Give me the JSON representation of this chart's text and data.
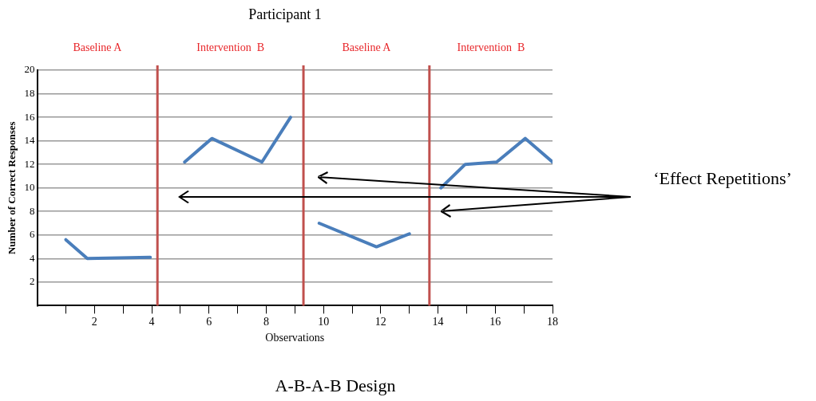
{
  "chart_data": {
    "type": "line",
    "title": "Participant 1",
    "xlabel": "Observations",
    "ylabel": "Number of Correct Responses",
    "xlim": [
      0,
      18
    ],
    "ylim": [
      0,
      20
    ],
    "xticks": [
      {
        "value": 1,
        "label": null
      },
      2,
      {
        "value": 3,
        "label": null
      },
      4,
      {
        "value": 5,
        "label": null
      },
      6,
      {
        "value": 7,
        "label": null
      },
      8,
      {
        "value": 9,
        "label": null
      },
      10,
      {
        "value": 11,
        "label": null
      },
      12,
      {
        "value": 13,
        "label": null
      },
      14,
      {
        "value": 15,
        "label": null
      },
      16,
      {
        "value": 17,
        "label": null
      },
      18
    ],
    "yticks": [
      2,
      4,
      6,
      8,
      10,
      12,
      14,
      16,
      18,
      20
    ],
    "grid": "y",
    "marker": "none",
    "line_style": "solid",
    "series": [
      {
        "color": "#4a7ebb",
        "x": [
          1,
          1.75,
          3.95
        ],
        "values": [
          5.6,
          4,
          4.1
        ]
      },
      {
        "color": "#4a7ebb",
        "x": [
          5.15,
          6.1,
          7.85,
          8.85
        ],
        "values": [
          12.2,
          14.2,
          12.2,
          16
        ]
      },
      {
        "color": "#4a7ebb",
        "x": [
          9.85,
          11.85,
          13
        ],
        "values": [
          7,
          5,
          6.1
        ]
      },
      {
        "color": "#4a7ebb",
        "x": [
          14.1,
          14.95,
          16.05,
          17.05,
          18
        ],
        "values": [
          10,
          12,
          12.2,
          14.2,
          12.2
        ]
      }
    ],
    "ref_lines": [
      {
        "axis": "x",
        "value": 4.2,
        "color": "#c0504d"
      },
      {
        "axis": "x",
        "value": 9.3,
        "color": "#c0504d"
      },
      {
        "axis": "x",
        "value": 13.7,
        "color": "#c0504d"
      }
    ],
    "annotations": [
      "Baseline A",
      "Intervention  B",
      "Baseline A",
      "Intervention  B",
      "‘Effect Repetitions’",
      "A-B-A-B Design"
    ]
  }
}
